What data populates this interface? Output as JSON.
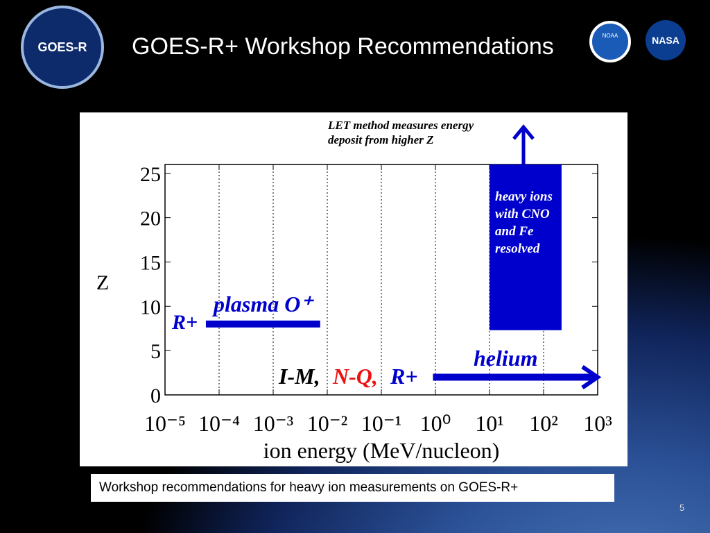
{
  "header": {
    "title": "GOES-R+ Workshop Recommendations",
    "logos": [
      "GOES-R",
      "NOAA",
      "NASA"
    ]
  },
  "chart_data": {
    "type": "range",
    "x_label": "ion energy (MeV/nucleon)",
    "y_label": "Z",
    "xscale": "log",
    "xlim": [
      1e-05,
      1000
    ],
    "ylim": [
      0,
      26
    ],
    "xticks": [
      {
        "value": 1e-05,
        "label": "10⁻⁵"
      },
      {
        "value": 0.0001,
        "label": "10⁻⁴"
      },
      {
        "value": 0.001,
        "label": "10⁻³"
      },
      {
        "value": 0.01,
        "label": "10⁻²"
      },
      {
        "value": 0.1,
        "label": "10⁻¹"
      },
      {
        "value": 1,
        "label": "10⁰"
      },
      {
        "value": 10,
        "label": "10¹"
      },
      {
        "value": 100,
        "label": "10²"
      },
      {
        "value": 1000,
        "label": "10³"
      }
    ],
    "yticks": [
      0,
      5,
      10,
      15,
      20,
      25
    ],
    "grid": "x",
    "regions": [
      {
        "label_lines": [
          "heavy ions",
          "with CNO",
          "and Fe",
          "resolved"
        ],
        "color": "#0000cc",
        "x": [
          10,
          215
        ],
        "y": [
          7.3,
          26
        ]
      }
    ],
    "ranges": [
      {
        "name": "plasma O⁺",
        "color": "#0000cc",
        "x": [
          5.7e-05,
          0.0074
        ],
        "y": 8,
        "arrow": false
      },
      {
        "name": "helium",
        "color": "#0000cc",
        "x": [
          0.9,
          1000
        ],
        "y": 2,
        "arrow": true
      }
    ],
    "annotations": [
      {
        "lines": [
          "LET method measures energy",
          "deposit from higher Z"
        ],
        "color": "#000000"
      },
      {
        "lines": [
          "R+"
        ],
        "color": "#0000cc"
      },
      {
        "lines": [
          "I-M,"
        ],
        "color": "#000000"
      },
      {
        "lines": [
          "N-Q,"
        ],
        "color": "#ee1111"
      },
      {
        "lines": [
          "R+"
        ],
        "color": "#0000cc"
      }
    ]
  },
  "caption": "Workshop recommendations for heavy ion measurements on GOES-R+",
  "page_number": "5"
}
